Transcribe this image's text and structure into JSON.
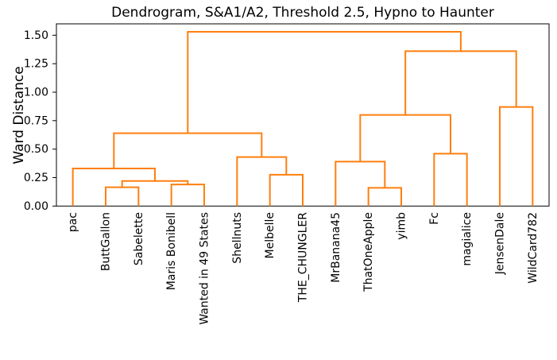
{
  "chart_data": {
    "type": "dendrogram",
    "title": "Dendrogram, S&A1/A2, Threshold 2.5, Hypno to Haunter",
    "ylabel": "Ward Distance",
    "xlabel": "",
    "link_color": "#ff7f0e",
    "axis_color": "#000000",
    "ylim": [
      0,
      1.6
    ],
    "yticks": [
      0.0,
      0.25,
      0.5,
      0.75,
      1.0,
      1.25,
      1.5
    ],
    "grid": false,
    "legend": false,
    "leaves": [
      "pac",
      "ButtGallon",
      "Sabelette",
      "Maris Bonibell",
      "Wanted in 49 States",
      "Shellnuts",
      "Melbelle",
      "THE_CHUNGLER",
      "MrBanana45",
      "ThatOneApple",
      "yimb",
      "Fc",
      "magialice",
      "JensenDale",
      "WildCard782"
    ],
    "merges": [
      {
        "id": "m1",
        "a": "ButtGallon",
        "b": "Sabelette",
        "height": 0.165
      },
      {
        "id": "m2",
        "a": "ThatOneApple",
        "b": "yimb",
        "height": 0.16
      },
      {
        "id": "m3",
        "a": "Maris Bonibell",
        "b": "Wanted in 49 States",
        "height": 0.19
      },
      {
        "id": "m4",
        "a": "m1",
        "b": "m3",
        "height": 0.22
      },
      {
        "id": "m5",
        "a": "Melbelle",
        "b": "THE_CHUNGLER",
        "height": 0.275
      },
      {
        "id": "m6",
        "a": "pac",
        "b": "m4",
        "height": 0.33
      },
      {
        "id": "m7",
        "a": "MrBanana45",
        "b": "m2",
        "height": 0.39
      },
      {
        "id": "m8",
        "a": "Shellnuts",
        "b": "m5",
        "height": 0.43
      },
      {
        "id": "m9",
        "a": "Fc",
        "b": "magialice",
        "height": 0.46
      },
      {
        "id": "m10",
        "a": "m6",
        "b": "m8",
        "height": 0.64
      },
      {
        "id": "m11",
        "a": "m7",
        "b": "m9",
        "height": 0.8
      },
      {
        "id": "m12",
        "a": "JensenDale",
        "b": "WildCard782",
        "height": 0.87
      },
      {
        "id": "m13",
        "a": "m11",
        "b": "m12",
        "height": 1.36
      },
      {
        "id": "m14",
        "a": "m10",
        "b": "m13",
        "height": 1.53
      }
    ]
  }
}
